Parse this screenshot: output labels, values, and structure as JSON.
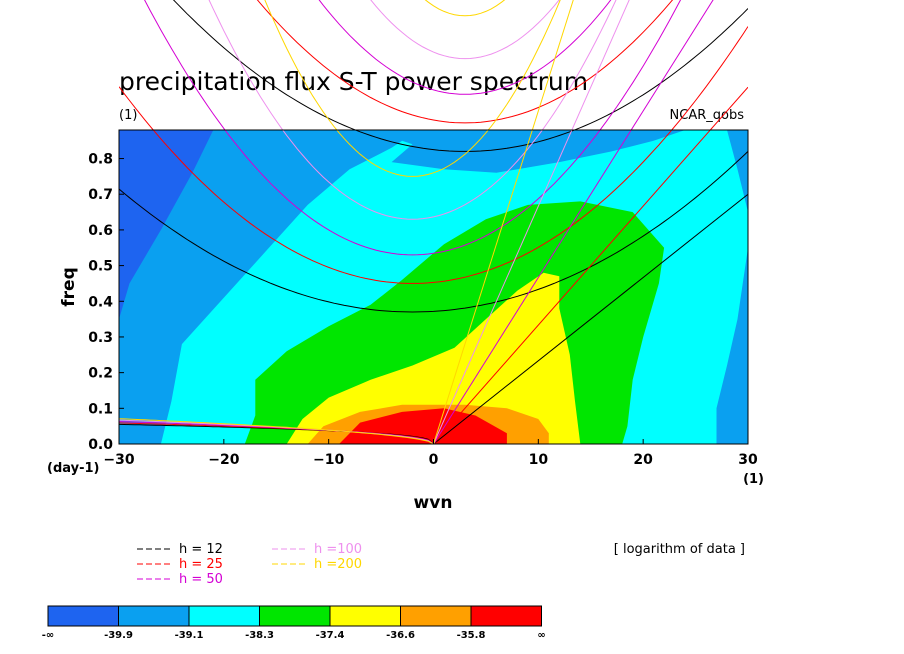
{
  "chart_data": {
    "type": "heatmap",
    "title": "precipitation flux S-T power spectrum",
    "subtitle_left": "(1)",
    "subtitle_right": "NCAR_qobs",
    "xlabel": "wvn",
    "ylabel": "freq",
    "x_unit_label": "(1)",
    "y_unit_label": "(day-1)",
    "xlim": [
      -30,
      30
    ],
    "ylim": [
      0,
      0.88
    ],
    "x_ticks": [
      -30,
      -20,
      -10,
      0,
      10,
      20,
      30
    ],
    "x_tick_labels": [
      "−30",
      "−20",
      "−10",
      "0",
      "10",
      "20",
      "30"
    ],
    "y_ticks": [
      0,
      0.1,
      0.2,
      0.3,
      0.4,
      0.5,
      0.6,
      0.7,
      0.8
    ],
    "y_tick_labels": [
      "0.0",
      "0.1",
      "0.2",
      "0.3",
      "0.4",
      "0.5",
      "0.6",
      "0.7",
      "0.8"
    ],
    "note": "[ logarithm of data ]",
    "colorbar": {
      "labels": [
        "-∞",
        "-39.9",
        "-39.1",
        "-38.3",
        "-37.4",
        "-36.6",
        "-35.8",
        "∞"
      ],
      "colors": [
        "#1e64f0",
        "#0aa0f0",
        "#00ffff",
        "#00e600",
        "#ffff00",
        "#ffa000",
        "#ff0000"
      ]
    },
    "contour_bands": [
      {
        "level_index": 1,
        "color": "#0aa0f0",
        "points": [
          [
            -30,
            0.88
          ],
          [
            -21,
            0.88
          ],
          [
            -23,
            0.76
          ],
          [
            -26,
            0.6
          ],
          [
            -29,
            0.45
          ],
          [
            -30,
            0.35
          ],
          [
            -30,
            0
          ],
          [
            30,
            0
          ],
          [
            30,
            0.88
          ]
        ]
      },
      {
        "level_index": 2,
        "color": "#00ffff",
        "points": [
          [
            -26,
            0
          ],
          [
            -25,
            0.12
          ],
          [
            -24,
            0.28
          ],
          [
            -20,
            0.41
          ],
          [
            -16,
            0.54
          ],
          [
            -12,
            0.67
          ],
          [
            -8,
            0.77
          ],
          [
            -4,
            0.83
          ],
          [
            -3,
            0.85
          ],
          [
            -2,
            0.84
          ],
          [
            -4,
            0.79
          ],
          [
            1,
            0.77
          ],
          [
            6,
            0.76
          ],
          [
            12,
            0.79
          ],
          [
            17,
            0.82
          ],
          [
            21,
            0.85
          ],
          [
            24,
            0.88
          ],
          [
            28,
            0.88
          ],
          [
            29,
            0.77
          ],
          [
            30,
            0.65
          ],
          [
            30,
            0.55
          ],
          [
            29,
            0.35
          ],
          [
            28,
            0.22
          ],
          [
            27,
            0.1
          ],
          [
            27,
            0
          ]
        ]
      },
      {
        "level_index": 3,
        "color": "#00e600",
        "points": [
          [
            -18,
            0
          ],
          [
            -17,
            0.08
          ],
          [
            -17,
            0.18
          ],
          [
            -14,
            0.26
          ],
          [
            -10,
            0.33
          ],
          [
            -6,
            0.39
          ],
          [
            -3,
            0.46
          ],
          [
            1,
            0.56
          ],
          [
            5,
            0.63
          ],
          [
            9,
            0.67
          ],
          [
            14,
            0.68
          ],
          [
            19,
            0.65
          ],
          [
            22,
            0.55
          ],
          [
            21.5,
            0.45
          ],
          [
            20,
            0.3
          ],
          [
            19,
            0.18
          ],
          [
            18.5,
            0.05
          ],
          [
            18,
            0
          ]
        ]
      },
      {
        "level_index": 4,
        "color": "#ffff00",
        "points": [
          [
            -14,
            0
          ],
          [
            -12.5,
            0.07
          ],
          [
            -10,
            0.13
          ],
          [
            -6,
            0.18
          ],
          [
            -2,
            0.22
          ],
          [
            2,
            0.27
          ],
          [
            5,
            0.35
          ],
          [
            8,
            0.43
          ],
          [
            10.5,
            0.48
          ],
          [
            12,
            0.47
          ],
          [
            12,
            0.38
          ],
          [
            13,
            0.25
          ],
          [
            13.5,
            0.12
          ],
          [
            14,
            0
          ]
        ]
      },
      {
        "level_index": 5,
        "color": "#ffa000",
        "points": [
          [
            -12,
            0
          ],
          [
            -10.5,
            0.05
          ],
          [
            -7,
            0.09
          ],
          [
            -3,
            0.11
          ],
          [
            3,
            0.11
          ],
          [
            7,
            0.1
          ],
          [
            10,
            0.07
          ],
          [
            11,
            0.03
          ],
          [
            11,
            0
          ]
        ]
      },
      {
        "level_index": 6,
        "color": "#ff0000",
        "points": [
          [
            -9,
            0
          ],
          [
            -7,
            0.06
          ],
          [
            -3,
            0.09
          ],
          [
            1,
            0.1
          ],
          [
            4,
            0.08
          ],
          [
            7,
            0.03
          ],
          [
            7,
            0
          ]
        ]
      }
    ],
    "dispersion_curves": [
      {
        "name": "h = 12",
        "color": "#000000",
        "westward_min_freq": 0.37,
        "kelvin_end": [
          30,
          0.7
        ],
        "westward_end": [
          30,
          0.82
        ]
      },
      {
        "name": "h = 25",
        "color": "#ff0000",
        "westward_min_freq": 0.45,
        "kelvin_end": [
          30,
          1.0
        ],
        "westward_end": [
          30,
          1.17
        ]
      },
      {
        "name": "h = 50",
        "color": "#d400d4",
        "westward_min_freq": 0.53,
        "kelvin_end": [
          30,
          1.4
        ],
        "westward_end": [
          30,
          1.65
        ]
      },
      {
        "name": "h =100",
        "color": "#ee90ee",
        "westward_min_freq": 0.63,
        "kelvin_end": [
          30,
          2.0
        ],
        "westward_end": [
          30,
          2.3
        ]
      },
      {
        "name": "h =200",
        "color": "#ffd700",
        "westward_min_freq": 0.75,
        "kelvin_end": [
          30,
          2.8
        ],
        "westward_end": [
          30,
          3.3
        ]
      }
    ]
  }
}
